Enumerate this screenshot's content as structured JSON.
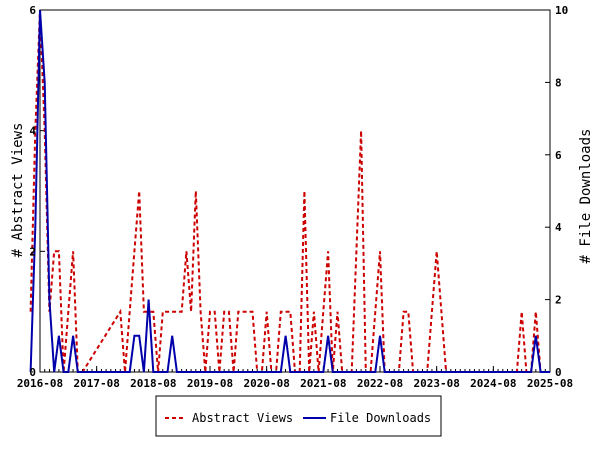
{
  "chart_data": {
    "type": "line",
    "y_left_label": "# Abstract Views",
    "y_right_label": "# File Downloads",
    "ylim_left": [
      0,
      6
    ],
    "ylim_right": [
      0,
      10
    ],
    "x_range": [
      "2016-08",
      "2025-08"
    ],
    "x_ticks": [
      "2016-08",
      "2017-08",
      "2018-08",
      "2019-08",
      "2020-08",
      "2021-08",
      "2022-08",
      "2023-08",
      "2024-08",
      "2025-08"
    ],
    "y_left_ticks": [
      "0",
      "2",
      "4",
      "6"
    ],
    "y_right_ticks": [
      "0",
      "2",
      "4",
      "6",
      "8",
      "10"
    ],
    "grid": false,
    "legend_position": "bottom",
    "series": [
      {
        "name": "Abstract Views",
        "axis": "left",
        "color": "#cc0000",
        "dash": true,
        "points": [
          [
            "2016-06",
            1
          ],
          [
            "2016-07",
            4
          ],
          [
            "2016-08",
            6
          ],
          [
            "2016-09",
            4
          ],
          [
            "2016-10",
            1
          ],
          [
            "2016-11",
            2
          ],
          [
            "2016-12",
            2
          ],
          [
            "2017-01",
            0
          ],
          [
            "2017-02",
            1
          ],
          [
            "2017-03",
            2
          ],
          [
            "2017-04",
            0
          ],
          [
            "2017-05",
            0
          ],
          [
            "2018-01",
            1
          ],
          [
            "2018-02",
            0
          ],
          [
            "2018-03",
            1
          ],
          [
            "2018-04",
            2
          ],
          [
            "2018-05",
            3
          ],
          [
            "2018-06",
            1
          ],
          [
            "2018-07",
            1
          ],
          [
            "2018-08",
            1
          ],
          [
            "2018-09",
            0
          ],
          [
            "2018-10",
            1
          ],
          [
            "2018-11",
            1
          ],
          [
            "2018-12",
            1
          ],
          [
            "2019-01",
            1
          ],
          [
            "2019-02",
            1
          ],
          [
            "2019-03",
            2
          ],
          [
            "2019-04",
            1
          ],
          [
            "2019-05",
            3
          ],
          [
            "2019-06",
            1
          ],
          [
            "2019-07",
            0
          ],
          [
            "2019-08",
            1
          ],
          [
            "2019-09",
            1
          ],
          [
            "2019-10",
            0
          ],
          [
            "2019-11",
            1
          ],
          [
            "2019-12",
            1
          ],
          [
            "2020-01",
            0
          ],
          [
            "2020-02",
            1
          ],
          [
            "2020-03",
            1
          ],
          [
            "2020-04",
            1
          ],
          [
            "2020-05",
            1
          ],
          [
            "2020-06",
            0
          ],
          [
            "2020-07",
            0
          ],
          [
            "2020-08",
            1
          ],
          [
            "2020-09",
            0
          ],
          [
            "2020-10",
            0
          ],
          [
            "2020-11",
            1
          ],
          [
            "2020-12",
            1
          ],
          [
            "2021-01",
            1
          ],
          [
            "2021-02",
            0
          ],
          [
            "2021-03",
            0
          ],
          [
            "2021-04",
            3
          ],
          [
            "2021-05",
            0
          ],
          [
            "2021-06",
            1
          ],
          [
            "2021-07",
            0
          ],
          [
            "2021-08",
            1
          ],
          [
            "2021-09",
            2
          ],
          [
            "2021-10",
            0
          ],
          [
            "2021-11",
            1
          ],
          [
            "2021-12",
            0
          ],
          [
            "2022-01",
            0
          ],
          [
            "2022-02",
            0
          ],
          [
            "2022-03",
            2
          ],
          [
            "2022-04",
            4
          ],
          [
            "2022-05",
            0
          ],
          [
            "2022-06",
            0
          ],
          [
            "2022-07",
            1
          ],
          [
            "2022-08",
            2
          ],
          [
            "2022-09",
            0
          ],
          [
            "2022-10",
            0
          ],
          [
            "2022-11",
            0
          ],
          [
            "2022-12",
            0
          ],
          [
            "2023-01",
            1
          ],
          [
            "2023-02",
            1
          ],
          [
            "2023-03",
            0
          ],
          [
            "2023-04",
            0
          ],
          [
            "2023-05",
            0
          ],
          [
            "2023-06",
            0
          ],
          [
            "2023-07",
            1
          ],
          [
            "2023-08",
            2
          ],
          [
            "2023-09",
            1
          ],
          [
            "2023-10",
            0
          ],
          [
            "2023-11",
            0
          ],
          [
            "2023-12",
            0
          ],
          [
            "2024-01",
            0
          ],
          [
            "2024-02",
            0
          ],
          [
            "2024-03",
            0
          ],
          [
            "2024-04",
            0
          ],
          [
            "2024-05",
            0
          ],
          [
            "2024-06",
            0
          ],
          [
            "2024-07",
            0
          ],
          [
            "2024-08",
            0
          ],
          [
            "2024-09",
            0
          ],
          [
            "2024-10",
            0
          ],
          [
            "2024-11",
            0
          ],
          [
            "2024-12",
            0
          ],
          [
            "2025-01",
            0
          ],
          [
            "2025-02",
            1
          ],
          [
            "2025-03",
            0
          ],
          [
            "2025-04",
            0
          ],
          [
            "2025-05",
            1
          ],
          [
            "2025-06",
            0
          ],
          [
            "2025-07",
            0
          ],
          [
            "2025-08",
            0
          ]
        ]
      },
      {
        "name": "File Downloads",
        "axis": "right",
        "color": "#0000aa",
        "dash": false,
        "points": [
          [
            "2016-06",
            0
          ],
          [
            "2016-07",
            4
          ],
          [
            "2016-08",
            10
          ],
          [
            "2016-09",
            8
          ],
          [
            "2016-10",
            2
          ],
          [
            "2016-11",
            0
          ],
          [
            "2016-12",
            1
          ],
          [
            "2017-01",
            0
          ],
          [
            "2017-02",
            0
          ],
          [
            "2017-03",
            1
          ],
          [
            "2017-04",
            0
          ],
          [
            "2017-05",
            0
          ],
          [
            "2018-01",
            0
          ],
          [
            "2018-02",
            0
          ],
          [
            "2018-03",
            0
          ],
          [
            "2018-04",
            1
          ],
          [
            "2018-05",
            1
          ],
          [
            "2018-06",
            0
          ],
          [
            "2018-07",
            2
          ],
          [
            "2018-08",
            0
          ],
          [
            "2018-09",
            0
          ],
          [
            "2018-10",
            0
          ],
          [
            "2018-11",
            0
          ],
          [
            "2018-12",
            1
          ],
          [
            "2019-01",
            0
          ],
          [
            "2019-02",
            0
          ],
          [
            "2019-03",
            0
          ],
          [
            "2019-04",
            0
          ],
          [
            "2019-05",
            0
          ],
          [
            "2019-06",
            0
          ],
          [
            "2019-07",
            0
          ],
          [
            "2019-08",
            0
          ],
          [
            "2019-09",
            0
          ],
          [
            "2019-10",
            0
          ],
          [
            "2019-11",
            0
          ],
          [
            "2019-12",
            0
          ],
          [
            "2020-01",
            0
          ],
          [
            "2020-02",
            0
          ],
          [
            "2020-03",
            0
          ],
          [
            "2020-04",
            0
          ],
          [
            "2020-05",
            0
          ],
          [
            "2020-06",
            0
          ],
          [
            "2020-07",
            0
          ],
          [
            "2020-08",
            0
          ],
          [
            "2020-09",
            0
          ],
          [
            "2020-10",
            0
          ],
          [
            "2020-11",
            0
          ],
          [
            "2020-12",
            1
          ],
          [
            "2021-01",
            0
          ],
          [
            "2021-02",
            0
          ],
          [
            "2021-03",
            0
          ],
          [
            "2021-04",
            0
          ],
          [
            "2021-05",
            0
          ],
          [
            "2021-06",
            0
          ],
          [
            "2021-07",
            0
          ],
          [
            "2021-08",
            0
          ],
          [
            "2021-09",
            1
          ],
          [
            "2021-10",
            0
          ],
          [
            "2021-11",
            0
          ],
          [
            "2021-12",
            0
          ],
          [
            "2022-01",
            0
          ],
          [
            "2022-02",
            0
          ],
          [
            "2022-03",
            0
          ],
          [
            "2022-04",
            0
          ],
          [
            "2022-05",
            0
          ],
          [
            "2022-06",
            0
          ],
          [
            "2022-07",
            0
          ],
          [
            "2022-08",
            1
          ],
          [
            "2022-09",
            0
          ],
          [
            "2022-10",
            0
          ],
          [
            "2022-11",
            0
          ],
          [
            "2022-12",
            0
          ],
          [
            "2023-01",
            0
          ],
          [
            "2023-02",
            0
          ],
          [
            "2023-03",
            0
          ],
          [
            "2023-04",
            0
          ],
          [
            "2023-05",
            0
          ],
          [
            "2023-06",
            0
          ],
          [
            "2023-07",
            0
          ],
          [
            "2023-08",
            0
          ],
          [
            "2023-09",
            0
          ],
          [
            "2023-10",
            0
          ],
          [
            "2023-11",
            0
          ],
          [
            "2023-12",
            0
          ],
          [
            "2024-01",
            0
          ],
          [
            "2024-02",
            0
          ],
          [
            "2024-03",
            0
          ],
          [
            "2024-04",
            0
          ],
          [
            "2024-05",
            0
          ],
          [
            "2024-06",
            0
          ],
          [
            "2024-07",
            0
          ],
          [
            "2024-08",
            0
          ],
          [
            "2024-09",
            0
          ],
          [
            "2024-10",
            0
          ],
          [
            "2024-11",
            0
          ],
          [
            "2024-12",
            0
          ],
          [
            "2025-01",
            0
          ],
          [
            "2025-02",
            0
          ],
          [
            "2025-03",
            0
          ],
          [
            "2025-04",
            0
          ],
          [
            "2025-05",
            1
          ],
          [
            "2025-06",
            0
          ],
          [
            "2025-07",
            0
          ],
          [
            "2025-08",
            0
          ]
        ]
      }
    ]
  },
  "legend": {
    "items": [
      {
        "label": "Abstract Views",
        "color": "#cc0000",
        "dash": true
      },
      {
        "label": "File Downloads",
        "color": "#0000aa",
        "dash": false
      }
    ]
  }
}
